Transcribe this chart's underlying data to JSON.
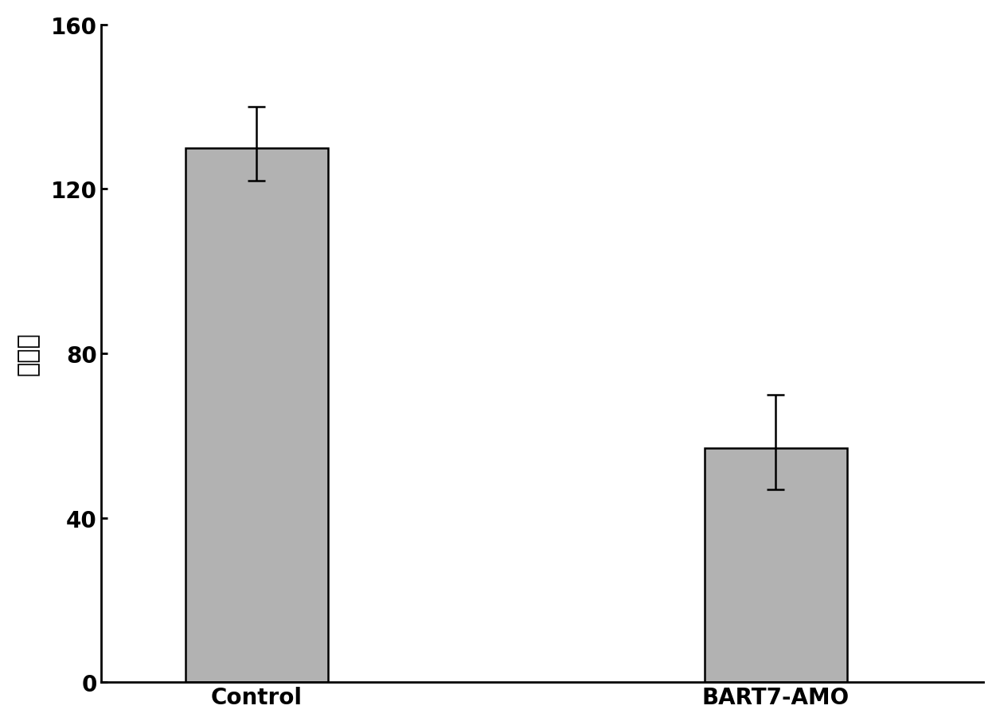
{
  "categories": [
    "Control",
    "BART7-AMO"
  ],
  "values": [
    130,
    57
  ],
  "errors_upper": [
    10,
    13
  ],
  "errors_lower": [
    8,
    10
  ],
  "bar_color": "#b2b2b2",
  "bar_edgecolor": "#000000",
  "bar_linewidth": 1.8,
  "bar_width": 0.55,
  "bar_positions": [
    1,
    3
  ],
  "ylabel": "细胞数",
  "ylim": [
    0,
    160
  ],
  "yticks": [
    0,
    40,
    80,
    120,
    160
  ],
  "ylabel_fontsize": 22,
  "tick_fontsize": 20,
  "xlabel_fontsize": 20,
  "errorbar_color": "#000000",
  "errorbar_linewidth": 1.8,
  "errorbar_capsize": 8,
  "errorbar_capthick": 1.8,
  "background_color": "#ffffff",
  "spine_linewidth": 2.0,
  "xlim": [
    0.4,
    3.8
  ]
}
